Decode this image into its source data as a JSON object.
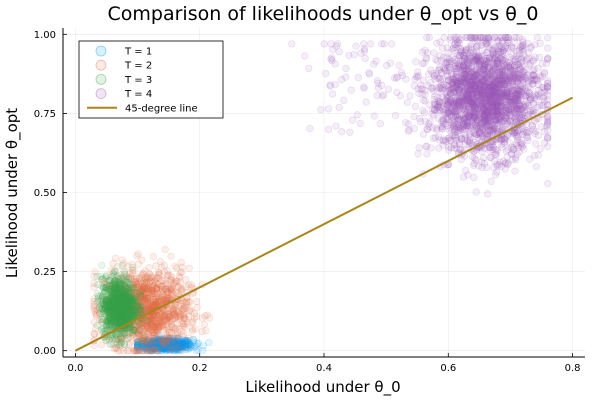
{
  "chart_data": {
    "type": "scatter",
    "title": "Comparison of likelihoods under θ_opt vs θ_0",
    "xlabel": "Likelihood under θ_0",
    "ylabel": "Likelihood under θ_opt",
    "xlim": [
      -0.02,
      0.82
    ],
    "ylim": [
      -0.02,
      1.02
    ],
    "xticks": [
      0.0,
      0.2,
      0.4,
      0.6,
      0.8
    ],
    "xtick_labels": [
      "0.0",
      "0.2",
      "0.4",
      "0.6",
      "0.8"
    ],
    "yticks": [
      0.0,
      0.25,
      0.5,
      0.75,
      1.0
    ],
    "ytick_labels": [
      "0.00",
      "0.25",
      "0.50",
      "0.75",
      "1.00"
    ],
    "grid": true,
    "legend_position": "top-left",
    "series": [
      {
        "name": "T = 1",
        "color": "#009af9",
        "clusters": [
          {
            "cx": 0.145,
            "cy": 0.018,
            "sx": 0.022,
            "sy": 0.009,
            "xr": [
              0.1,
              0.25
            ],
            "yr": [
              0.0,
              0.05
            ],
            "n": 600
          }
        ]
      },
      {
        "name": "T = 2",
        "color": "#e26f46",
        "clusters": [
          {
            "cx": 0.115,
            "cy": 0.13,
            "sx": 0.034,
            "sy": 0.065,
            "xr": [
              0.03,
              0.27
            ],
            "yr": [
              0.0,
              0.38
            ],
            "n": 1100
          }
        ]
      },
      {
        "name": "T = 3",
        "color": "#3da44d",
        "clusters": [
          {
            "cx": 0.07,
            "cy": 0.14,
            "sx": 0.014,
            "sy": 0.045,
            "xr": [
              0.035,
              0.12
            ],
            "yr": [
              0.02,
              0.27
            ],
            "n": 1000
          }
        ]
      },
      {
        "name": "T = 4",
        "color": "#9b59b6",
        "clusters": [
          {
            "cx": 0.66,
            "cy": 0.8,
            "sx": 0.045,
            "sy": 0.09,
            "xr": [
              0.5,
              0.76
            ],
            "yr": [
              0.3,
              0.99
            ],
            "n": 2200
          },
          {
            "cx": 0.46,
            "cy": 0.85,
            "sx": 0.05,
            "sy": 0.08,
            "xr": [
              0.33,
              0.56
            ],
            "yr": [
              0.6,
              0.97
            ],
            "n": 80
          }
        ]
      }
    ],
    "reference_line": {
      "name": "45-degree line",
      "color": "#a8861a",
      "x": [
        0.0,
        0.8
      ],
      "y": [
        0.0,
        0.8
      ]
    }
  }
}
